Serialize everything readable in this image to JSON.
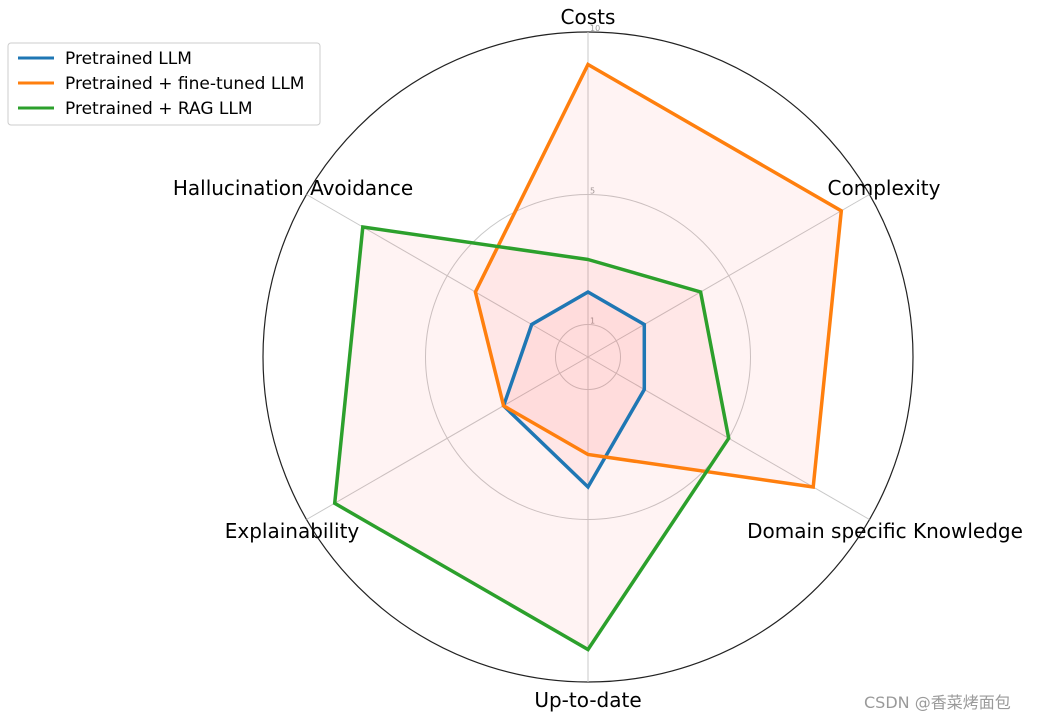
{
  "chart_data": {
    "type": "radar",
    "axes": [
      "Costs",
      "Complexity",
      "Domain specific Knowledge",
      "Up-to-date",
      "Explainability",
      "Hallucination Avoidance"
    ],
    "rlim": [
      0,
      10
    ],
    "radial_ticks": [
      1,
      5,
      10
    ],
    "radial_tick_labels": [
      "1",
      "5",
      "10"
    ],
    "grid": true,
    "legend_position": "top-left",
    "series": [
      {
        "name": "Pretrained LLM",
        "color": "#1f77b4",
        "values": [
          2,
          2,
          2,
          4,
          3,
          2
        ]
      },
      {
        "name": "Pretrained + fine-tuned LLM",
        "color": "#ff7f0e",
        "values": [
          9,
          9,
          8,
          3,
          3,
          4
        ]
      },
      {
        "name": "Pretrained + RAG LLM",
        "color": "#2ca02c",
        "values": [
          3,
          4,
          5,
          9,
          9,
          8
        ]
      }
    ]
  },
  "watermark": "CSDN @香菜烤面包"
}
